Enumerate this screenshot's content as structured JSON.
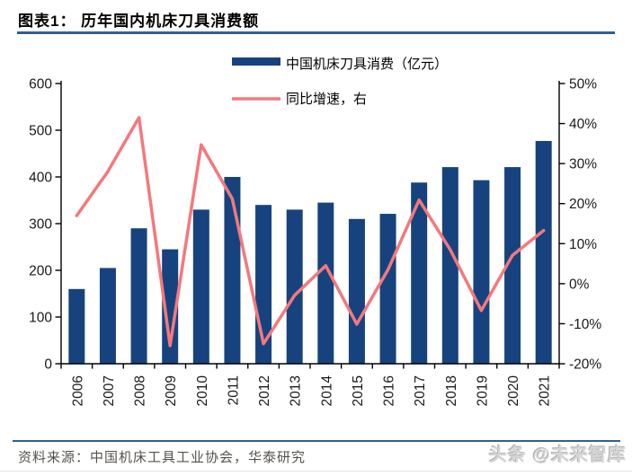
{
  "header": {
    "title": "图表1：  历年国内机床刀具消费额"
  },
  "chart_data": {
    "type": "bar+line",
    "categories": [
      "2006",
      "2007",
      "2008",
      "2009",
      "2010",
      "2011",
      "2012",
      "2013",
      "2014",
      "2015",
      "2016",
      "2017",
      "2018",
      "2019",
      "2020",
      "2021"
    ],
    "series": [
      {
        "name": "中国机床刀具消费（亿元）",
        "type": "bar",
        "axis": "left",
        "color": "#16437E",
        "values": [
          160,
          205,
          290,
          245,
          330,
          400,
          340,
          330,
          345,
          310,
          321,
          388,
          421,
          393,
          421,
          477
        ]
      },
      {
        "name": "同比增速，右",
        "type": "line",
        "axis": "right",
        "color": "#F4787C",
        "values": [
          17,
          28,
          41.5,
          -15.5,
          34.7,
          21.2,
          -15,
          -2.9,
          4.5,
          -10.1,
          3.5,
          20.9,
          8.5,
          -6.7,
          7.1,
          13.3
        ]
      }
    ],
    "left_axis": {
      "min": 0,
      "max": 600,
      "step": 100,
      "tick_labels": [
        "0",
        "100",
        "200",
        "300",
        "400",
        "500",
        "600"
      ]
    },
    "right_axis": {
      "min": -20,
      "max": 50,
      "step": 10,
      "tick_labels": [
        "-20%",
        "-10%",
        "0%",
        "10%",
        "20%",
        "30%",
        "40%",
        "50%"
      ]
    },
    "legend_position": "top-center",
    "grid": false
  },
  "footer": {
    "source": "资料来源：中国机床工具工业协会，华泰研究",
    "watermark": "头条 @未来智库"
  },
  "colors": {
    "bar": "#16437E",
    "line": "#F4787C",
    "rule": "#2F618F",
    "axis_line": "#000000",
    "tick_text": "#1A1A1A",
    "footer_text": "#55524B",
    "watermark_text": "#D6D6D6"
  }
}
